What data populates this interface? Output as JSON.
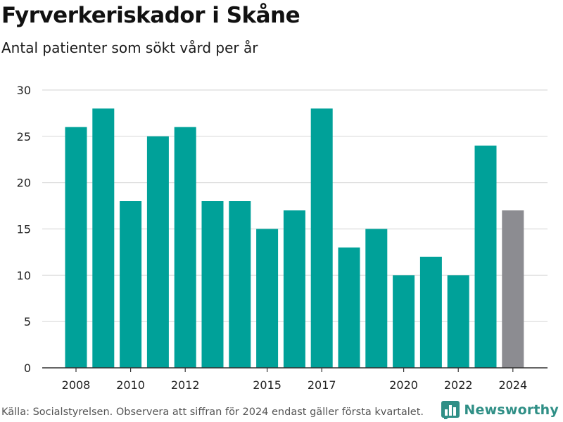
{
  "chart_data": {
    "type": "bar",
    "title": "Fyrverkeriskador i Skåne",
    "subtitle": "Antal patienter som sökt vård per år",
    "categories": [
      2008,
      2009,
      2010,
      2011,
      2012,
      2013,
      2014,
      2015,
      2016,
      2017,
      2018,
      2019,
      2020,
      2021,
      2022,
      2023,
      2024
    ],
    "values": [
      26,
      28,
      18,
      25,
      26,
      18,
      18,
      15,
      17,
      28,
      13,
      15,
      10,
      12,
      10,
      24,
      17
    ],
    "x_tick_labels": [
      "2008",
      "2010",
      "2012",
      "2015",
      "2017",
      "2020",
      "2022",
      "2024"
    ],
    "y_ticks": [
      0,
      5,
      10,
      15,
      20,
      25,
      30
    ],
    "ylim": [
      0,
      30
    ],
    "grid": true,
    "colors": {
      "bar": "#00a199",
      "highlight_bar": "#8c8c91",
      "grid": "#dcdcdc",
      "axis": "#333333"
    },
    "highlight_category": 2024
  },
  "footer": {
    "source": "Källa: Socialstyrelsen. Observera att siffran för 2024 endast gäller första kvartalet."
  },
  "brand": {
    "name": "Newsworthy",
    "icon": "bar-chart-logo-icon"
  }
}
